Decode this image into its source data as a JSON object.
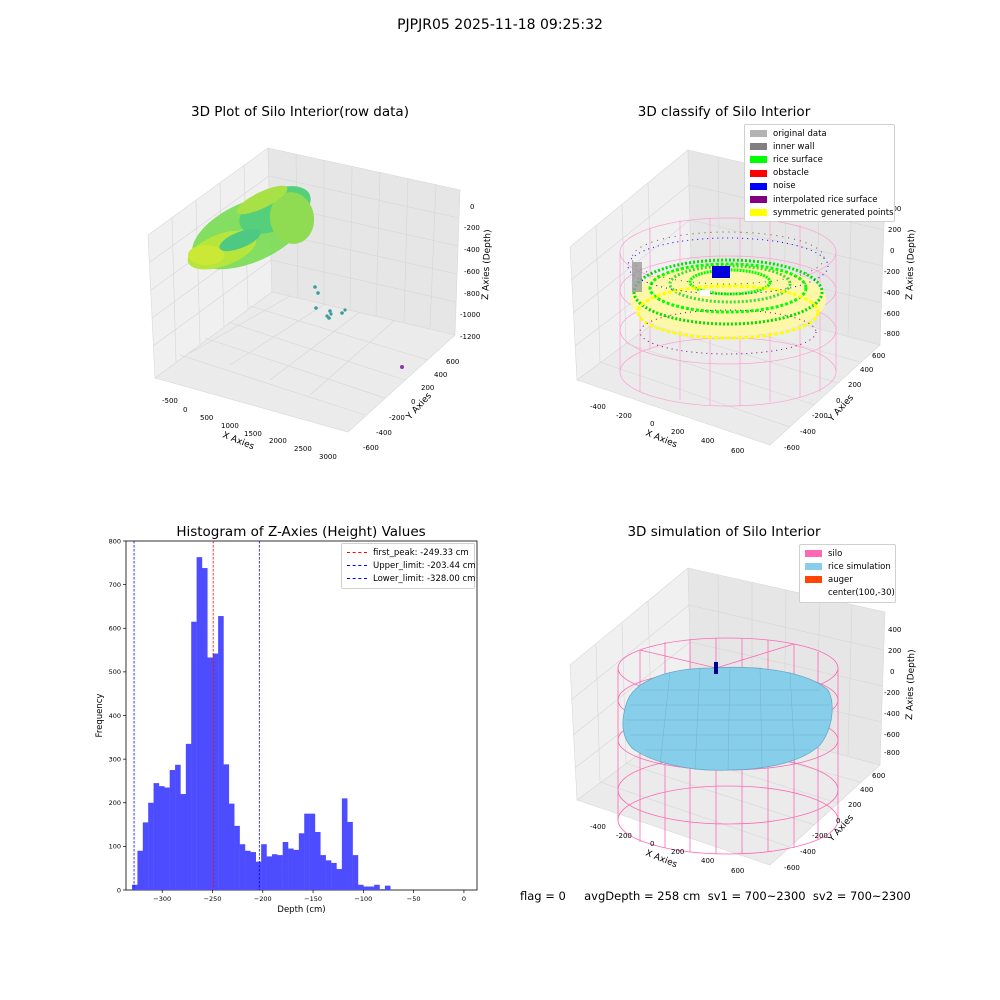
{
  "suptitle": "PJPJR05 2025-11-18 09:25:32",
  "panels": {
    "raw": {
      "title": "3D Plot of Silo Interior(row data)",
      "xlabel": "X Axies",
      "ylabel": "Y Axies",
      "zlabel": "Z Axies (Depth)",
      "xticks": [
        "-500",
        "0",
        "500",
        "1000",
        "1500",
        "2000",
        "2500",
        "3000"
      ],
      "yticks": [
        "600",
        "400",
        "200",
        "0",
        "-200",
        "-400",
        "-600"
      ],
      "zticks": [
        "0",
        "-200",
        "-400",
        "-600",
        "-800",
        "-1000",
        "-1200"
      ]
    },
    "classify": {
      "title": "3D classify of Silo Interior",
      "xlabel": "X Axies",
      "ylabel": "Y Axies",
      "zlabel": "Z Axies (Depth)",
      "xticks": [
        "-400",
        "-200",
        "0",
        "200",
        "400",
        "600"
      ],
      "yticks": [
        "600",
        "400",
        "200",
        "0",
        "-200",
        "-400",
        "-600"
      ],
      "zticks": [
        "400",
        "200",
        "0",
        "-200",
        "-400",
        "-600",
        "-800"
      ],
      "legend": [
        {
          "label": "original data",
          "color": "#b3b3b3"
        },
        {
          "label": "inner wall",
          "color": "#808080"
        },
        {
          "label": "rice surface",
          "color": "#00ff00"
        },
        {
          "label": "obstacle",
          "color": "#ff0000"
        },
        {
          "label": "noise",
          "color": "#0000ff"
        },
        {
          "label": "interpolated rice surface",
          "color": "#800080"
        },
        {
          "label": "symmetric generated points",
          "color": "#ffff00"
        }
      ]
    },
    "simulation": {
      "title": "3D simulation of Silo Interior",
      "xlabel": "X Axies",
      "ylabel": "Y Axies",
      "zlabel": "Z Axies (Depth)",
      "xticks": [
        "-400",
        "-200",
        "0",
        "200",
        "400",
        "600"
      ],
      "yticks": [
        "600",
        "400",
        "200",
        "0",
        "-200",
        "-400",
        "-600"
      ],
      "zticks": [
        "400",
        "200",
        "0",
        "-200",
        "-400",
        "-600",
        "-800"
      ],
      "legend": [
        {
          "label": "silo",
          "color": "#ff69b4"
        },
        {
          "label": "rice simulation",
          "color": "#87ceeb"
        },
        {
          "label": "auger",
          "color": "#ff4500"
        },
        {
          "label": "center(100,-30)",
          "color": ""
        }
      ]
    }
  },
  "chart_data": {
    "type": "bar",
    "title": "Histogram of Z-Axies (Height) Values",
    "xlabel": "Depth (cm)",
    "ylabel": "Frequency",
    "xlim": [
      -336,
      13
    ],
    "ylim": [
      0,
      800
    ],
    "xticks": [
      -300,
      -250,
      -200,
      -150,
      -100,
      -50,
      0
    ],
    "yticks": [
      0,
      100,
      200,
      300,
      400,
      500,
      600,
      700,
      800
    ],
    "bin_start": -330,
    "bin_width": 5.35,
    "color": "#4d4dff",
    "values": [
      12,
      90,
      155,
      200,
      245,
      238,
      235,
      275,
      287,
      220,
      335,
      615,
      763,
      738,
      533,
      542,
      628,
      288,
      198,
      147,
      105,
      90,
      87,
      65,
      105,
      77,
      82,
      80,
      110,
      95,
      92,
      130,
      175,
      175,
      133,
      80,
      68,
      62,
      48,
      210,
      156,
      80,
      12,
      8,
      8,
      12,
      2,
      10
    ],
    "vlines": [
      {
        "x": -249.33,
        "color": "#ff0000",
        "label": "first_peak: -249.33 cm"
      },
      {
        "x": -203.44,
        "color": "#0000ff",
        "label": "Upper_limit: -203.44 cm"
      },
      {
        "x": -328.0,
        "color": "#0000ff",
        "label": "Lower_limit: -328.00 cm"
      }
    ],
    "legend_position": "top-right"
  },
  "stats": {
    "text": "flag = 0     avgDepth = 258 cm  sv1 = 700~2300  sv2 = 700~2300"
  }
}
